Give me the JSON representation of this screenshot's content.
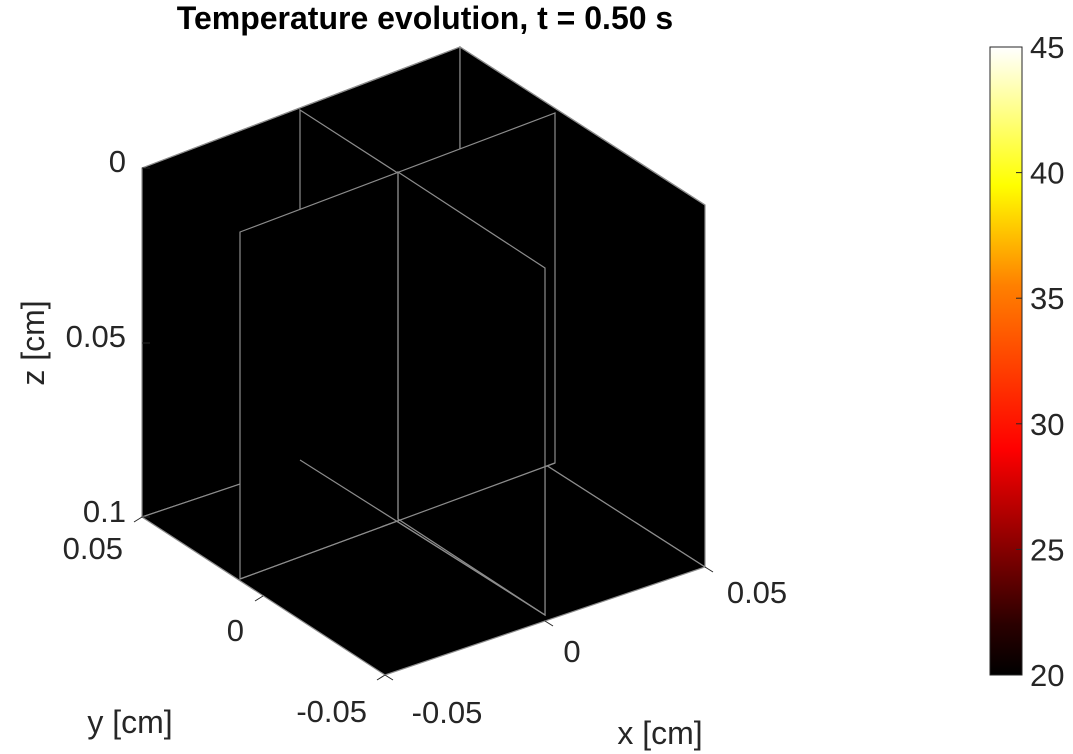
{
  "chart_data": {
    "type": "heatmap",
    "subtype": "3d-slice-volume",
    "title": "Temperature evolution, t = 0.50 s",
    "xlabel": "x [cm]",
    "ylabel": "y [cm]",
    "zlabel": "z [cm]",
    "xticks": [
      "-0.05",
      "0",
      "0.05"
    ],
    "yticks": [
      "-0.05",
      "0",
      "0.05"
    ],
    "zticks": [
      "0",
      "0.05",
      "0.1"
    ],
    "xlim": [
      -0.05,
      0.05
    ],
    "ylim": [
      -0.05,
      0.05
    ],
    "zlim": [
      0,
      0.1
    ],
    "z_direction": "reversed",
    "slice_value": 20,
    "colormap": "hot",
    "colorbar": {
      "range": [
        20,
        45
      ],
      "ticks": [
        "20",
        "25",
        "30",
        "35",
        "40",
        "45"
      ],
      "placement": "right",
      "stops": [
        "#000000",
        "#2a0000",
        "#ff0000",
        "#ff8000",
        "#ffff00",
        "#ffffff"
      ]
    }
  }
}
